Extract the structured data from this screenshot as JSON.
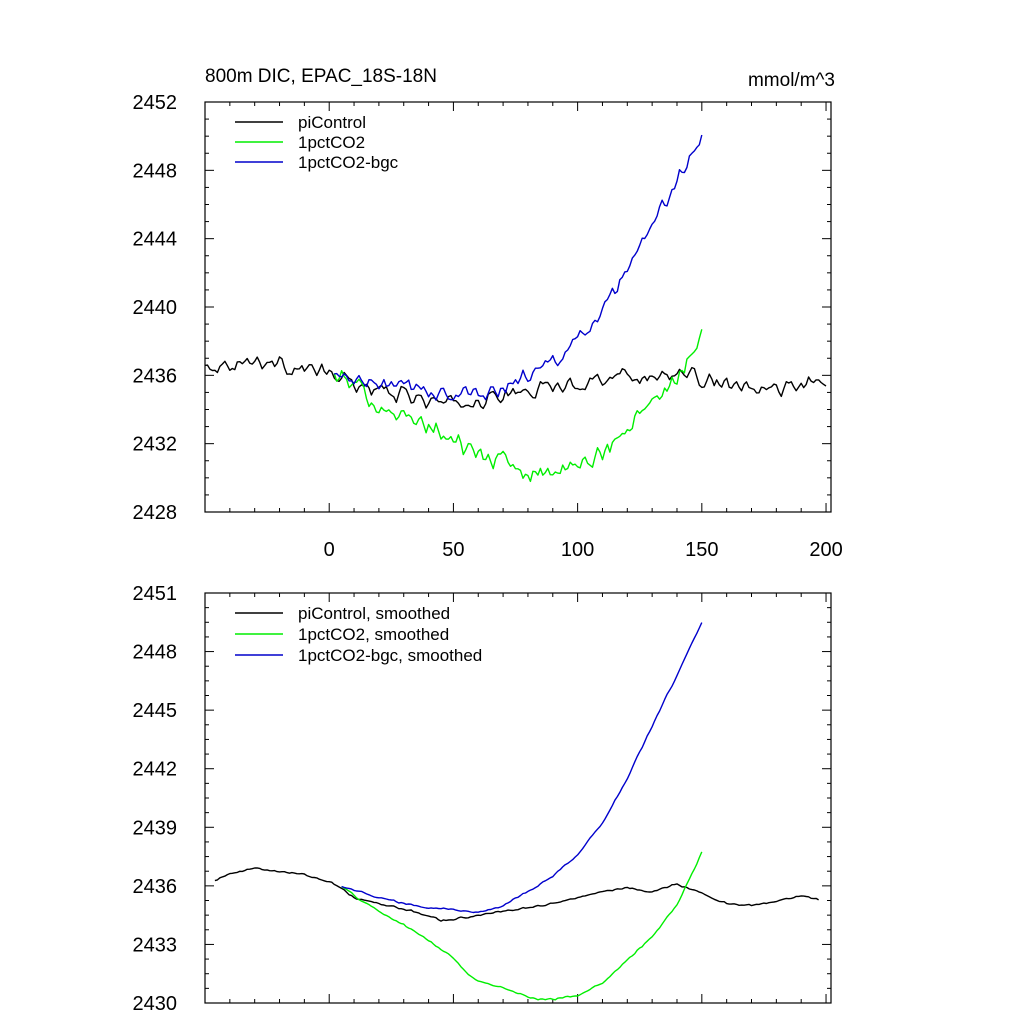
{
  "chart_data": [
    {
      "type": "line",
      "title": "800m DIC, EPAC_18S-18N",
      "units": "mmol/m^3",
      "xlim": [
        -50,
        202
      ],
      "ylim": [
        2428,
        2452
      ],
      "xticks": [
        0,
        50,
        100,
        150,
        200
      ],
      "xtick_labels": [
        "0",
        "50",
        "100",
        "150",
        "200"
      ],
      "yticks": [
        2428,
        2432,
        2436,
        2440,
        2444,
        2448,
        2452
      ],
      "ytick_labels": [
        "2428",
        "2432",
        "2436",
        "2440",
        "2444",
        "2448",
        "2452"
      ],
      "legend_position": "top-left",
      "series": [
        {
          "name": "piControl",
          "color": "#000000",
          "noise": 0.55,
          "x": [
            -50,
            -40,
            -30,
            -20,
            -10,
            0,
            10,
            20,
            30,
            40,
            50,
            60,
            70,
            80,
            90,
            100,
            110,
            120,
            130,
            140,
            150,
            160,
            170,
            180,
            190,
            200
          ],
          "y": [
            2436.5,
            2436.7,
            2436.9,
            2436.6,
            2436.4,
            2436.1,
            2435.5,
            2435.1,
            2434.8,
            2434.5,
            2434.3,
            2434.5,
            2434.8,
            2435.1,
            2435.3,
            2435.5,
            2435.9,
            2436.0,
            2435.9,
            2436.1,
            2435.8,
            2435.4,
            2435.1,
            2435.2,
            2435.5,
            2435.4
          ]
        },
        {
          "name": "1pctCO2",
          "color": "#00ee00",
          "noise": 0.7,
          "x": [
            2,
            10,
            20,
            30,
            40,
            50,
            60,
            70,
            80,
            90,
            100,
            110,
            120,
            130,
            140,
            150
          ],
          "y": [
            2436.0,
            2435.3,
            2434.4,
            2433.5,
            2433.0,
            2432.2,
            2431.4,
            2430.9,
            2430.4,
            2430.3,
            2430.6,
            2431.5,
            2432.8,
            2434.4,
            2436.0,
            2438.3
          ]
        },
        {
          "name": "1pctCO2-bgc",
          "color": "#0000cc",
          "noise": 0.55,
          "x": [
            2,
            10,
            20,
            30,
            40,
            50,
            60,
            70,
            80,
            90,
            100,
            110,
            120,
            130,
            140,
            150
          ],
          "y": [
            2436.0,
            2435.7,
            2435.5,
            2435.3,
            2435.1,
            2434.8,
            2434.9,
            2435.3,
            2436.0,
            2436.8,
            2438.0,
            2439.7,
            2442.0,
            2444.6,
            2447.4,
            2450.0
          ]
        }
      ]
    },
    {
      "type": "line",
      "title": "",
      "units": "",
      "xlim": [
        -50,
        202
      ],
      "ylim": [
        2430,
        2451
      ],
      "xticks": [
        0,
        50,
        100,
        150,
        200
      ],
      "xtick_labels": [],
      "yticks": [
        2430,
        2433,
        2436,
        2439,
        2442,
        2445,
        2448,
        2451
      ],
      "ytick_labels": [
        "2430",
        "2433",
        "2436",
        "2439",
        "2442",
        "2445",
        "2448",
        "2451"
      ],
      "legend_position": "top-left",
      "series": [
        {
          "name": "piControl, smoothed",
          "color": "#000000",
          "noise": 0.06,
          "x": [
            -46,
            -40,
            -30,
            -20,
            -10,
            0,
            5,
            10,
            20,
            30,
            40,
            45,
            50,
            60,
            70,
            80,
            90,
            100,
            110,
            120,
            130,
            140,
            150,
            160,
            170,
            180,
            190,
            197
          ],
          "y": [
            2436.3,
            2436.6,
            2436.9,
            2436.7,
            2436.6,
            2436.2,
            2435.9,
            2435.4,
            2435.1,
            2434.8,
            2434.5,
            2434.2,
            2434.3,
            2434.5,
            2434.7,
            2434.9,
            2435.1,
            2435.4,
            2435.7,
            2435.9,
            2435.7,
            2436.1,
            2435.6,
            2435.1,
            2435.0,
            2435.2,
            2435.5,
            2435.3
          ]
        },
        {
          "name": "1pctCO2, smoothed",
          "color": "#00ee00",
          "noise": 0.06,
          "x": [
            5,
            10,
            20,
            30,
            40,
            50,
            55,
            60,
            70,
            80,
            85,
            90,
            100,
            110,
            120,
            130,
            140,
            150
          ],
          "y": [
            2436.0,
            2435.5,
            2434.7,
            2434.0,
            2433.2,
            2432.3,
            2431.6,
            2431.1,
            2430.8,
            2430.3,
            2430.2,
            2430.2,
            2430.4,
            2431.0,
            2432.2,
            2433.4,
            2435.0,
            2437.7
          ]
        },
        {
          "name": "1pctCO2-bgc, smoothed",
          "color": "#0000cc",
          "noise": 0.06,
          "x": [
            5,
            10,
            20,
            30,
            40,
            50,
            60,
            70,
            80,
            90,
            100,
            110,
            120,
            130,
            140,
            150
          ],
          "y": [
            2436.0,
            2435.8,
            2435.4,
            2435.1,
            2434.9,
            2434.8,
            2434.6,
            2435.0,
            2435.7,
            2436.5,
            2437.6,
            2439.2,
            2441.5,
            2444.2,
            2446.8,
            2449.5
          ]
        }
      ]
    }
  ]
}
